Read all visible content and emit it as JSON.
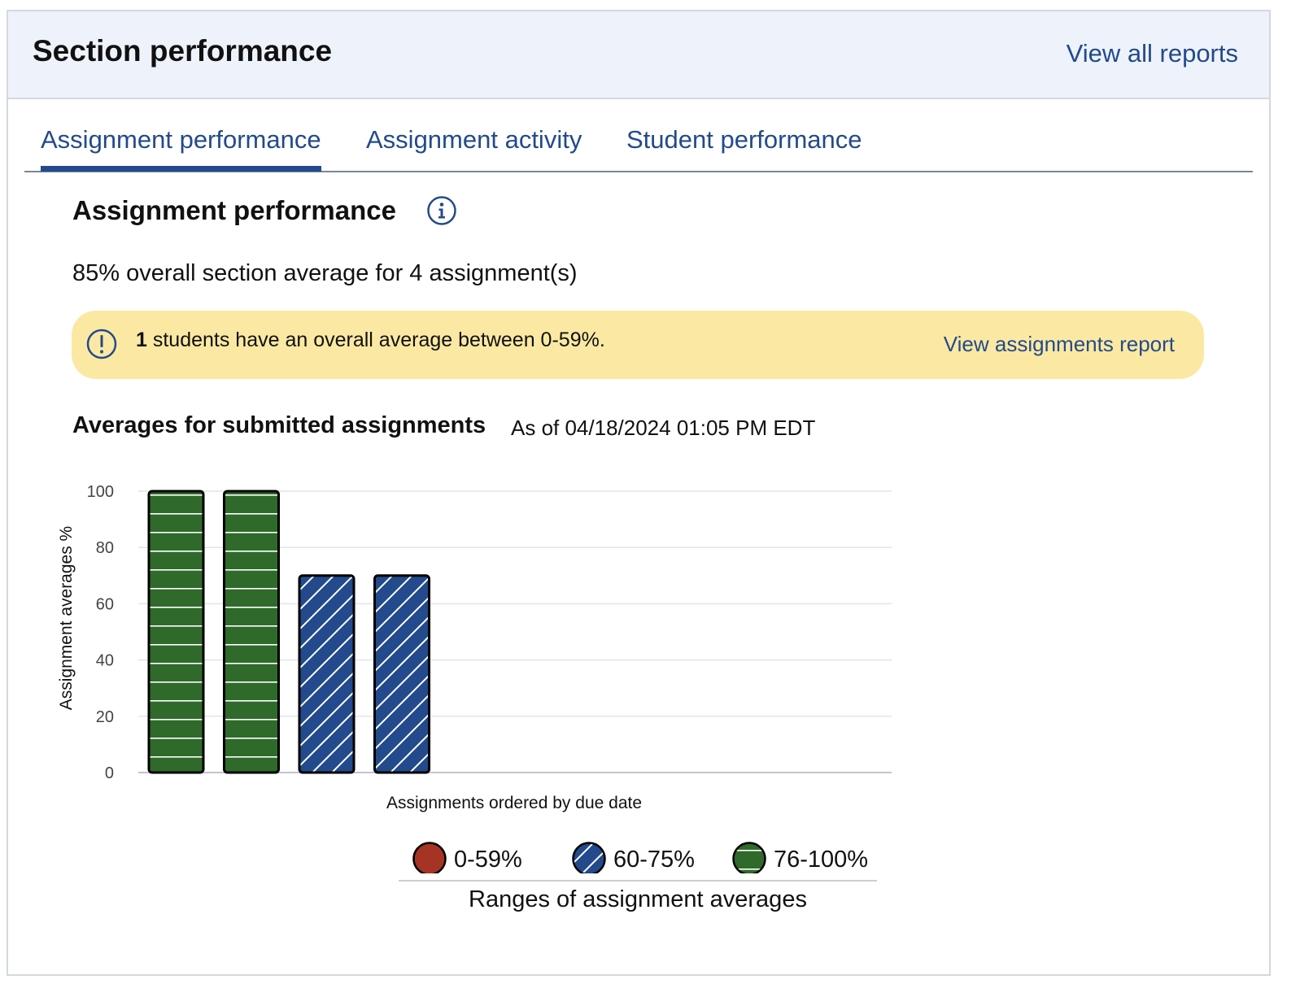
{
  "header": {
    "title": "Section performance",
    "view_all_label": "View all reports"
  },
  "tabs": [
    {
      "label": "Assignment performance",
      "active": true
    },
    {
      "label": "Assignment activity",
      "active": false
    },
    {
      "label": "Student performance",
      "active": false
    }
  ],
  "main": {
    "section_title": "Assignment performance",
    "info_icon": "info-icon",
    "overall_text": "85% overall section average for 4 assignment(s)",
    "alert": {
      "icon": "exclamation-circle-icon",
      "count": "1",
      "text": " students have an overall average between 0-59%.",
      "link_label": "View assignments report"
    },
    "chart_heading": "Averages for submitted assignments",
    "chart_timestamp": "As of 04/18/2024 01:05 PM EDT",
    "legend_caption": "Ranges of assignment averages"
  },
  "colors": {
    "low": "#a63424",
    "mid": "#234a8c",
    "high": "#2f6a2a",
    "link": "#234a8c",
    "alert_bg": "#fbe9a3"
  },
  "chart_data": {
    "type": "bar",
    "categories": [
      "",
      "",
      "",
      ""
    ],
    "values": [
      100,
      100,
      70,
      70
    ],
    "range_index": [
      2,
      2,
      1,
      1
    ],
    "ylim": [
      0,
      100
    ],
    "yticks": [
      0,
      20,
      40,
      60,
      80,
      100
    ],
    "xlabel": "Assignments ordered by due date",
    "ylabel": "Assignment averages %",
    "grid": true,
    "legend": {
      "title": "Ranges of assignment averages",
      "placement": "bottom",
      "entries": [
        {
          "label": "0-59%",
          "color": "#a63424",
          "pattern": "solid"
        },
        {
          "label": "60-75%",
          "color": "#234a8c",
          "pattern": "diagonal"
        },
        {
          "label": "76-100%",
          "color": "#2f6a2a",
          "pattern": "horizontal"
        }
      ]
    }
  }
}
